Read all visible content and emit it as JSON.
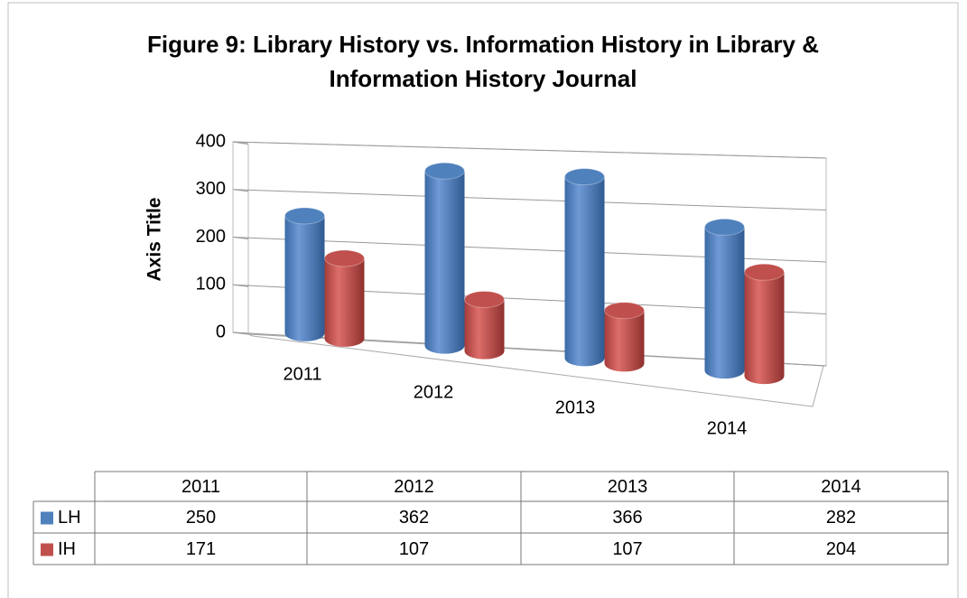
{
  "chart_data": {
    "type": "bar3d",
    "title": "Figure 9: Library History vs. Information History in Library & Information History Journal",
    "y_axis_label": "Axis Title",
    "categories": [
      "2011",
      "2012",
      "2013",
      "2014"
    ],
    "series": [
      {
        "name": "LH",
        "color": "#4f81bd",
        "values": [
          250,
          362,
          366,
          282
        ]
      },
      {
        "name": "IH",
        "color": "#c0504d",
        "values": [
          171,
          107,
          107,
          204
        ]
      }
    ],
    "ylim": [
      0,
      400
    ],
    "yticks": [
      0,
      100,
      200,
      300,
      400
    ],
    "grid": true,
    "data_table": true
  }
}
